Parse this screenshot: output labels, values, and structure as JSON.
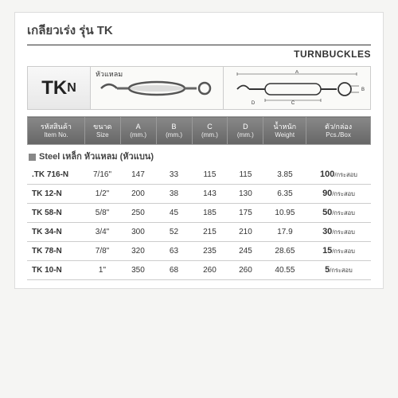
{
  "title": "เกลียวเร่ง รุ่น TK",
  "subtitle": "TURNBUCKLES",
  "tkn_label": "TK",
  "tkn_small": "N",
  "image_label": "หัวแหลม",
  "section_title": "Steel เหล็ก หัวแหลม (หัวแบน)",
  "headers": {
    "item": {
      "th": "รหัสสินค้า",
      "en": "Item No."
    },
    "size": {
      "th": "ขนาด",
      "en": "Size"
    },
    "a": {
      "main": "A",
      "sub": "(mm.)"
    },
    "b": {
      "main": "B",
      "sub": "(mm.)"
    },
    "c": {
      "main": "C",
      "sub": "(mm.)"
    },
    "d": {
      "main": "D",
      "sub": "(mm.)"
    },
    "weight": {
      "th": "น้ำหนัก",
      "en": "Weight"
    },
    "pcs": {
      "th": "ตัว/กล่อง",
      "en": "Pcs./Box"
    }
  },
  "rows": [
    {
      "item": ".TK 716-N",
      "size": "7/16\"",
      "a": "147",
      "b": "33",
      "c": "115",
      "d": "115",
      "w": "3.85",
      "pcs_big": "100",
      "pcs_small": "/กระสอบ"
    },
    {
      "item": "TK 12-N",
      "size": "1/2\"",
      "a": "200",
      "b": "38",
      "c": "143",
      "d": "130",
      "w": "6.35",
      "pcs_big": "90",
      "pcs_small": "/กระสอบ"
    },
    {
      "item": "TK 58-N",
      "size": "5/8\"",
      "a": "250",
      "b": "45",
      "c": "185",
      "d": "175",
      "w": "10.95",
      "pcs_big": "50",
      "pcs_small": "/กระสอบ"
    },
    {
      "item": "TK 34-N",
      "size": "3/4\"",
      "a": "300",
      "b": "52",
      "c": "215",
      "d": "210",
      "w": "17.9",
      "pcs_big": "30",
      "pcs_small": "/กระสอบ"
    },
    {
      "item": "TK 78-N",
      "size": "7/8\"",
      "a": "320",
      "b": "63",
      "c": "235",
      "d": "245",
      "w": "28.65",
      "pcs_big": "15",
      "pcs_small": "/กระสอบ"
    },
    {
      "item": "TK 10-N",
      "size": "1\"",
      "a": "350",
      "b": "68",
      "c": "260",
      "d": "260",
      "w": "40.55",
      "pcs_big": "5",
      "pcs_small": "/กระสอบ"
    }
  ],
  "colors": {
    "bg": "#f5f5f3",
    "header_bg": "#757575",
    "border": "#ccc",
    "text": "#3a3a3a"
  }
}
